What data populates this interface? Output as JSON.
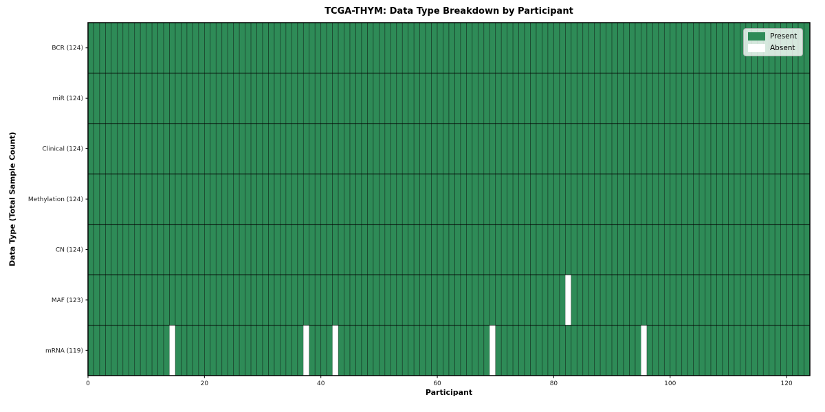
{
  "chart_data": {
    "type": "heatmap",
    "title": "TCGA-THYM: Data Type Breakdown by Participant",
    "xlabel": "Participant",
    "ylabel": "Data Type (Total Sample Count)",
    "n_participants": 124,
    "x_ticks": [
      0,
      20,
      40,
      60,
      80,
      100,
      120
    ],
    "xlim": [
      0,
      124
    ],
    "grid": false,
    "legend_position": "upper right",
    "rows": [
      {
        "label": "BCR (124)",
        "data_type": "BCR",
        "total": 124,
        "absent": []
      },
      {
        "label": "miR (124)",
        "data_type": "miR",
        "total": 124,
        "absent": []
      },
      {
        "label": "Clinical (124)",
        "data_type": "Clinical",
        "total": 124,
        "absent": []
      },
      {
        "label": "Methylation (124)",
        "data_type": "Methylation",
        "total": 124,
        "absent": []
      },
      {
        "label": "CN (124)",
        "data_type": "CN",
        "total": 124,
        "absent": []
      },
      {
        "label": "MAF (123)",
        "data_type": "MAF",
        "total": 123,
        "absent": [
          82
        ]
      },
      {
        "label": "mRNA (119)",
        "data_type": "mRNA",
        "total": 119,
        "absent": [
          14,
          37,
          42,
          69,
          95
        ]
      }
    ],
    "legend": {
      "present_label": "Present",
      "absent_label": "Absent"
    },
    "colors": {
      "present": "#2e8b57",
      "absent": "#ffffff",
      "cell_edge": "#000000",
      "frame": "#000000",
      "tick_text": "#1a1a1a"
    }
  }
}
